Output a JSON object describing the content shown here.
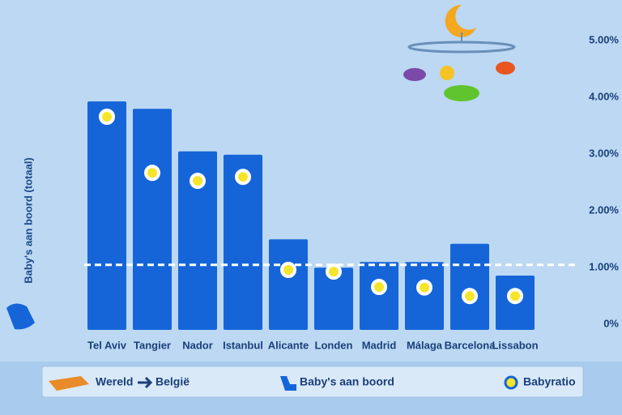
{
  "chart_data": {
    "type": "bar_dot",
    "title": {
      "from": "Wereld",
      "to": "België"
    },
    "y_label": "Baby's aan boord (totaal)",
    "categories": [
      "Tel Aviv",
      "Tangier",
      "Nador",
      "Istanbul",
      "Alicante",
      "Londen",
      "Madrid",
      "Málaga",
      "Barcelona",
      "Lissabon"
    ],
    "series": [
      {
        "name": "Baby's aan boord",
        "color": "#1565d8",
        "values": [
          3.97,
          3.84,
          3.09,
          3.03,
          1.54,
          1.04,
          1.14,
          1.14,
          1.46,
          0.9
        ]
      },
      {
        "name": "Babyratio",
        "color": "#f5e52a",
        "values": [
          3.7,
          2.71,
          2.57,
          2.64,
          1.0,
          0.97,
          0.7,
          0.69,
          0.54,
          0.54
        ]
      }
    ],
    "reference_line": 1.09,
    "ylim": [
      0,
      5.15
    ],
    "yticks": [
      {
        "value": 0,
        "label": "0%"
      },
      {
        "value": 1,
        "label": "1.00%"
      },
      {
        "value": 2,
        "label": "2.00%"
      },
      {
        "value": 3,
        "label": "3.00%"
      },
      {
        "value": 4,
        "label": "4.00%"
      },
      {
        "value": 5,
        "label": "5.00%"
      }
    ]
  }
}
